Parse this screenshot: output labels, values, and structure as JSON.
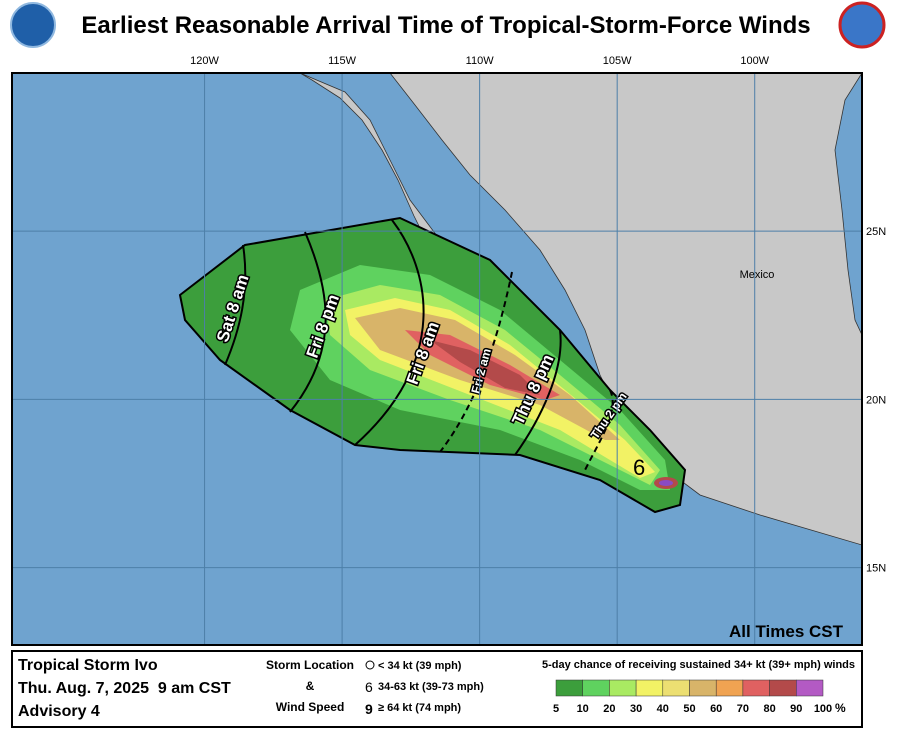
{
  "header": {
    "title": "Earliest Reasonable Arrival Time of Tropical-Storm-Force Winds"
  },
  "map": {
    "xlim": [
      -127,
      -96.1
    ],
    "ylim": [
      12.7,
      29.7
    ],
    "lon_ticks": [
      {
        "value": -120,
        "label": "120W"
      },
      {
        "value": -115,
        "label": "115W"
      },
      {
        "value": -110,
        "label": "110W"
      },
      {
        "value": -105,
        "label": "105W"
      },
      {
        "value": -100,
        "label": "100W"
      }
    ],
    "lat_ticks": [
      {
        "value": 25,
        "label": "25N"
      },
      {
        "value": 20,
        "label": "20N"
      },
      {
        "value": 15,
        "label": "15N"
      }
    ],
    "country_label": "Mexico",
    "arrival_labels": [
      "Sat 8 am",
      "Fri 8 pm",
      "Fri 8 am",
      "Fri 2 am",
      "Thu 8 pm",
      "Thu 2 pm"
    ],
    "note": "All Times CST"
  },
  "footer": {
    "storm": "Tropical Storm Ivo",
    "time": "Thu. Aug. 7, 2025  9 am CST",
    "advisory": "Advisory 4",
    "key_title_1": "Storm Location",
    "key_amp": "&",
    "key_title_2": "Wind Speed",
    "key_items": [
      "< 34 kt (39 mph)",
      "34-63 kt (39-73 mph)",
      "≥ 64 kt (74 mph)"
    ],
    "legend_title": "5-day chance of receiving sustained 34+ kt (39+ mph) winds",
    "legend_ticks": [
      5,
      10,
      20,
      30,
      40,
      50,
      60,
      70,
      80,
      90,
      100
    ],
    "legend_unit": "%",
    "legend_colors": [
      "#3c9e3c",
      "#5fd25f",
      "#a9ea62",
      "#f2f265",
      "#ecdf72",
      "#d8b469",
      "#f0a352",
      "#e06161",
      "#b34a4a",
      "#b35ac4"
    ]
  }
}
